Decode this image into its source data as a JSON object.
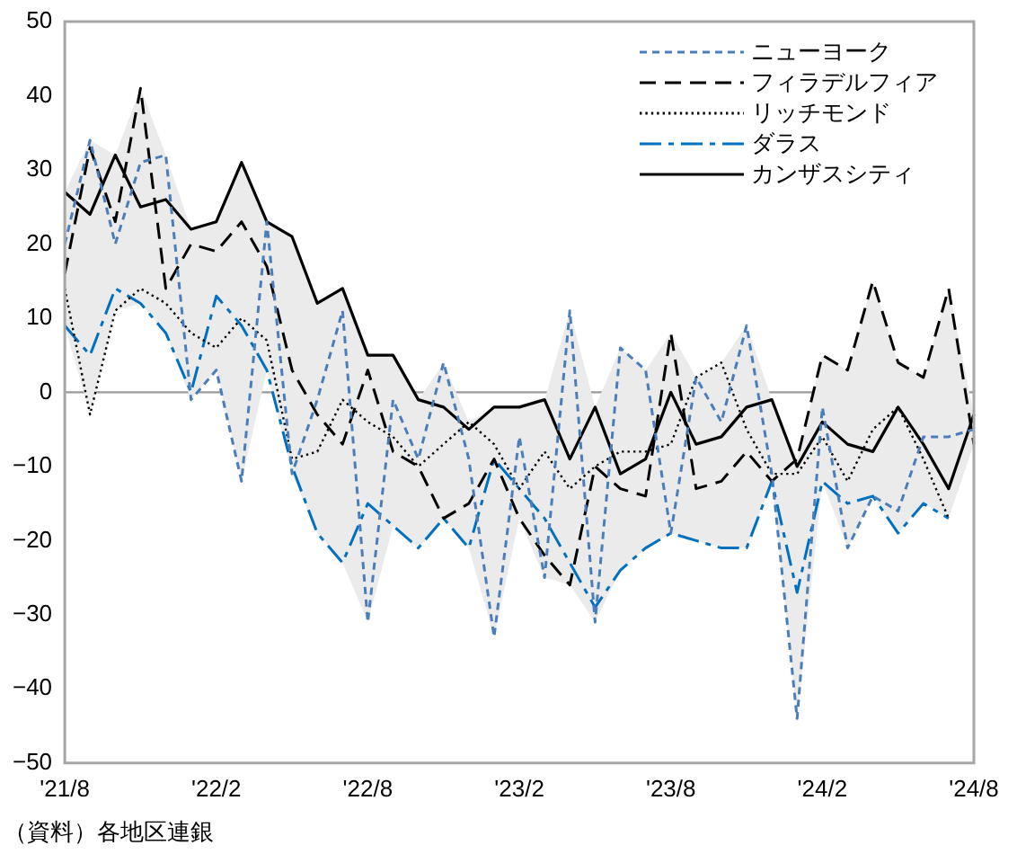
{
  "chart_data": {
    "type": "line",
    "categories": [
      "'21/8",
      null,
      null,
      null,
      null,
      null,
      "'22/2",
      null,
      null,
      null,
      null,
      null,
      "'22/8",
      null,
      null,
      null,
      null,
      null,
      "'23/2",
      null,
      null,
      null,
      null,
      null,
      "'23/8",
      null,
      null,
      null,
      null,
      null,
      "'24/2",
      null,
      null,
      null,
      null,
      null,
      "'24/8"
    ],
    "series": [
      {
        "name": "ニューヨーク",
        "color": "#4a7ebb",
        "line_style": "dashed",
        "values": [
          20,
          34,
          20,
          31,
          32,
          -1,
          3,
          -12,
          23,
          -11,
          -1,
          11,
          -31,
          -1,
          -9,
          4,
          -9,
          -33,
          -6,
          -25,
          11,
          -31,
          6,
          3,
          -19,
          2,
          -4,
          9,
          -11,
          -44,
          -2,
          -21,
          -14,
          -16,
          -6,
          -6,
          -5
        ]
      },
      {
        "name": "フィラデルフィア",
        "color": "#000000",
        "line_style": "dashed",
        "values": [
          16,
          33,
          23,
          41,
          14,
          20,
          19,
          23,
          17,
          3,
          -3,
          -7,
          3,
          -8,
          -10,
          -17,
          -15,
          -9,
          -17,
          -22,
          -26,
          -10,
          -13,
          -14,
          8,
          -13,
          -12,
          -8,
          -12,
          -9,
          5,
          3,
          15,
          4,
          2,
          14,
          -7
        ]
      },
      {
        "name": "リッチモンド",
        "color": "#000000",
        "line_style": "dotted",
        "values": [
          14,
          -3,
          11,
          14,
          12,
          8,
          6,
          10,
          7,
          -9,
          -8,
          -1,
          -4,
          -6,
          -10,
          -7,
          -4,
          -7,
          -13,
          -8,
          -13,
          -10,
          -8,
          -8,
          -7,
          2,
          4,
          -5,
          -11,
          -11,
          -6,
          -12,
          -5,
          -2,
          -9,
          -17,
          null
        ]
      },
      {
        "name": "ダラス",
        "color": "#0070c0",
        "line_style": "dashdot",
        "values": [
          9,
          5,
          14,
          12,
          8,
          0,
          13,
          9,
          3,
          -10,
          -19,
          -23,
          -15,
          -18,
          -21,
          -17,
          -21,
          -9,
          -13,
          -17,
          -23,
          -29,
          -24,
          -21,
          -19,
          -20,
          -21,
          -21,
          -12,
          -27,
          -12,
          -15,
          -14,
          -19,
          -15,
          -17,
          null
        ]
      },
      {
        "name": "カンザスシティ",
        "color": "#000000",
        "line_style": "solid",
        "values": [
          27,
          24,
          32,
          25,
          26,
          22,
          23,
          31,
          23,
          21,
          12,
          14,
          5,
          5,
          -1,
          -2,
          -5,
          -2,
          -2,
          -1,
          -9,
          -2,
          -11,
          -9,
          0,
          -7,
          -6,
          -2,
          -1,
          -10,
          -4,
          -7,
          -8,
          -2,
          -7,
          -13,
          -3
        ],
        "lower": [
          9,
          -3,
          11,
          12,
          8,
          -1,
          3,
          -12,
          3,
          -11,
          -19,
          -23,
          -31,
          -18,
          -21,
          -17,
          -21,
          -33,
          -17,
          -25,
          -26,
          -31,
          -24,
          -21,
          -19,
          -20,
          -21,
          -21,
          -12,
          -44,
          -12,
          -21,
          -14,
          -19,
          -15,
          -17,
          -7
        ],
        "upper": [
          27,
          34,
          32,
          41,
          32,
          22,
          23,
          31,
          23,
          21,
          12,
          14,
          5,
          5,
          -1,
          4,
          -4,
          -2,
          -2,
          -1,
          11,
          -2,
          6,
          3,
          8,
          2,
          4,
          9,
          -1,
          -9,
          5,
          3,
          15,
          4,
          2,
          14,
          -3
        ]
      }
    ],
    "ylim": [
      -50,
      50
    ],
    "yticks": [
      -50,
      -40,
      -30,
      -20,
      -10,
      0,
      10,
      20,
      30,
      40,
      50
    ],
    "ref_lines": [
      {
        "axis": "y",
        "value": 0,
        "color": "#999999"
      }
    ],
    "grid": false,
    "legend": "top right",
    "marker": "none",
    "annotations": [
      "（資料）各地区連銀"
    ]
  }
}
